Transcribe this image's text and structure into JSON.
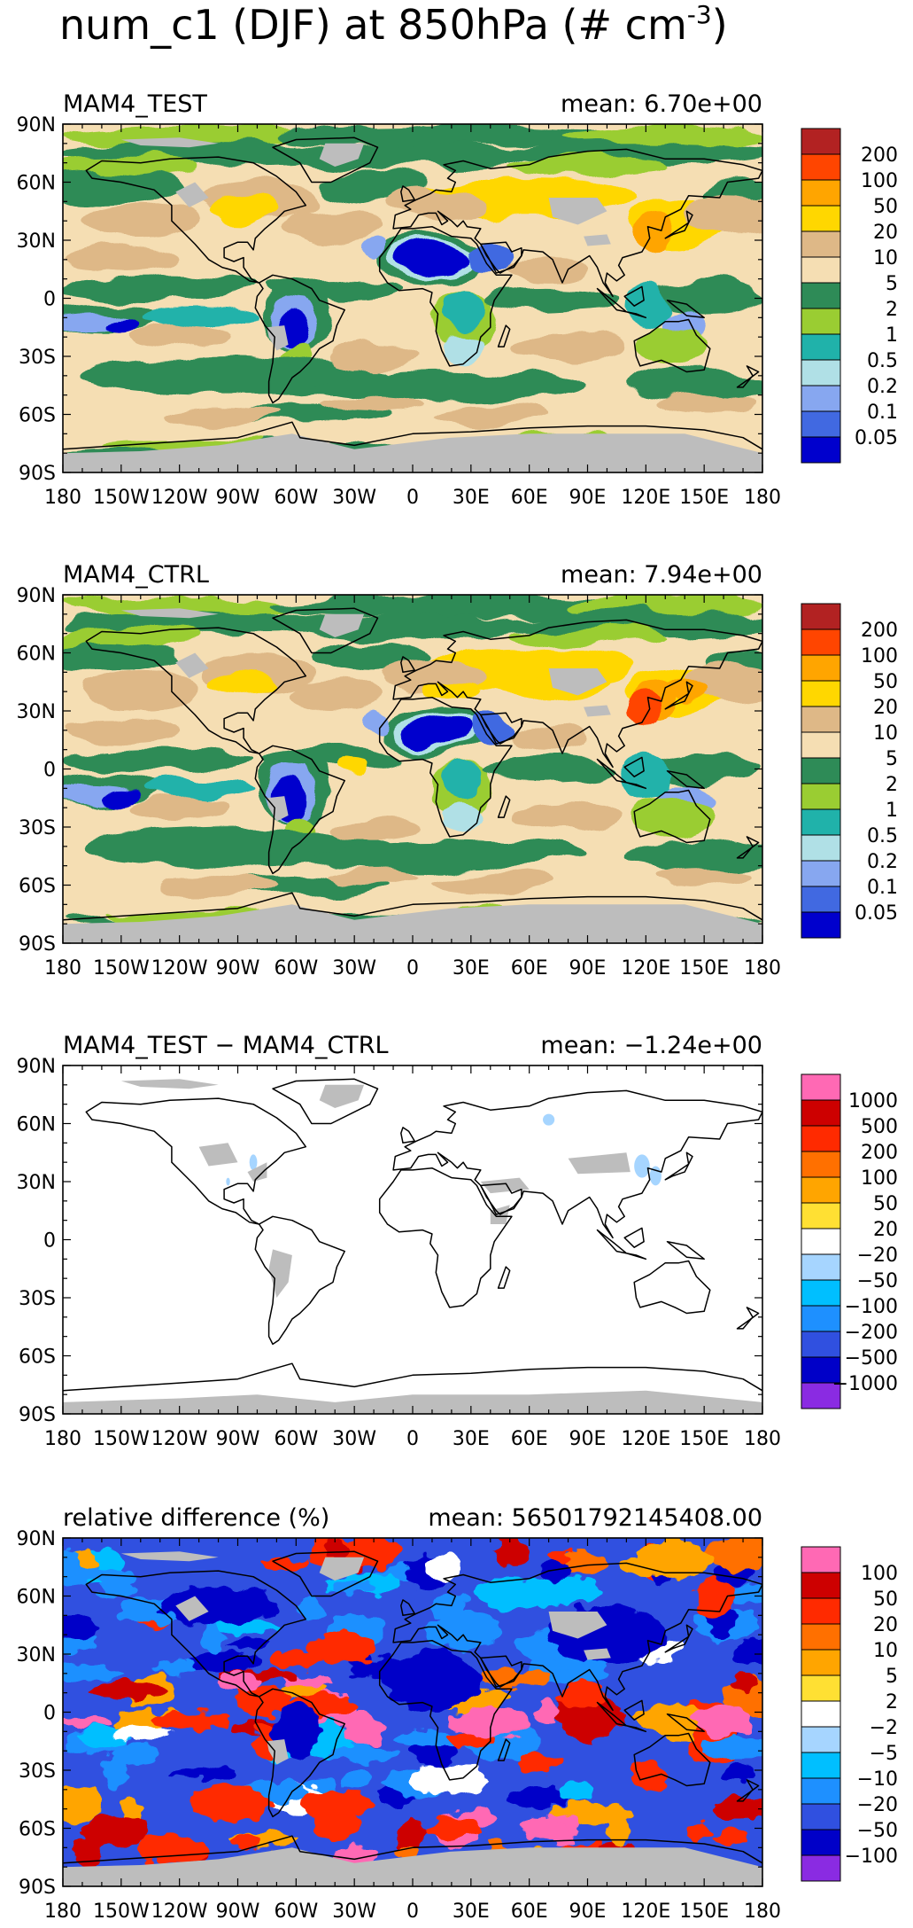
{
  "title": {
    "main": "num_c1 (DJF) at 850hPa (# cm",
    "exponent": "-3",
    "close": ")"
  },
  "axes": {
    "x_ticks": [
      "180",
      "150W",
      "120W",
      "90W",
      "60W",
      "30W",
      "0",
      "30E",
      "60E",
      "90E",
      "120E",
      "150E",
      "180"
    ],
    "y_ticks": [
      "90N",
      "60N",
      "30N",
      "0",
      "30S",
      "60S",
      "90S"
    ],
    "x_range": [
      -180,
      180
    ],
    "y_range": [
      -90,
      90
    ]
  },
  "colors": {
    "land_missing": "#bdbdbd",
    "coastline": "#000000"
  },
  "chart_data": [
    {
      "type": "heatmap",
      "title": "MAM4_TEST",
      "mean_label": "mean: 6.70e+00",
      "xlabel": "",
      "ylabel": "",
      "legend_position": "right",
      "colorbar": {
        "labels": [
          "200",
          "100",
          "50",
          "20",
          "10",
          "5",
          "2",
          "1",
          "0.5",
          "0.2",
          "0.1",
          "0.05"
        ],
        "colors": [
          "#b22222",
          "#ff4500",
          "#ffa500",
          "#ffd700",
          "#deb887",
          "#f5deb3",
          "#2e8b57",
          "#9acd32",
          "#20b2aa",
          "#b0e0e6",
          "#87a7f0",
          "#4169e1",
          "#0000cd"
        ]
      }
    },
    {
      "type": "heatmap",
      "title": "MAM4_CTRL",
      "mean_label": "mean: 7.94e+00",
      "xlabel": "",
      "ylabel": "",
      "legend_position": "right",
      "colorbar": {
        "labels": [
          "200",
          "100",
          "50",
          "20",
          "10",
          "5",
          "2",
          "1",
          "0.5",
          "0.2",
          "0.1",
          "0.05"
        ],
        "colors": [
          "#b22222",
          "#ff4500",
          "#ffa500",
          "#ffd700",
          "#deb887",
          "#f5deb3",
          "#2e8b57",
          "#9acd32",
          "#20b2aa",
          "#b0e0e6",
          "#87a7f0",
          "#4169e1",
          "#0000cd"
        ]
      }
    },
    {
      "type": "heatmap",
      "title": "MAM4_TEST − MAM4_CTRL",
      "mean_label": "mean: −1.24e+00",
      "xlabel": "",
      "ylabel": "",
      "legend_position": "right",
      "colorbar": {
        "labels": [
          "1000",
          "500",
          "200",
          "100",
          "50",
          "20",
          "−20",
          "−50",
          "−100",
          "−200",
          "−500",
          "−1000"
        ],
        "colors": [
          "#ff69b4",
          "#cd0000",
          "#ff2a00",
          "#ff7000",
          "#ffa500",
          "#ffe033",
          "#ffffff",
          "#a6d5ff",
          "#00bfff",
          "#1e90ff",
          "#3050e0",
          "#0000c8",
          "#8a2be2"
        ]
      }
    },
    {
      "type": "heatmap",
      "title": "relative difference (%)",
      "mean_label": "mean: 56501792145408.00",
      "xlabel": "",
      "ylabel": "",
      "legend_position": "right",
      "colorbar": {
        "labels": [
          "100",
          "50",
          "20",
          "10",
          "5",
          "2",
          "−2",
          "−5",
          "−10",
          "−20",
          "−50",
          "−100"
        ],
        "colors": [
          "#ff69b4",
          "#cd0000",
          "#ff2a00",
          "#ff7000",
          "#ffa500",
          "#ffe033",
          "#ffffff",
          "#a6d5ff",
          "#00bfff",
          "#1e90ff",
          "#3050e0",
          "#0000c8",
          "#8a2be2"
        ]
      }
    }
  ]
}
